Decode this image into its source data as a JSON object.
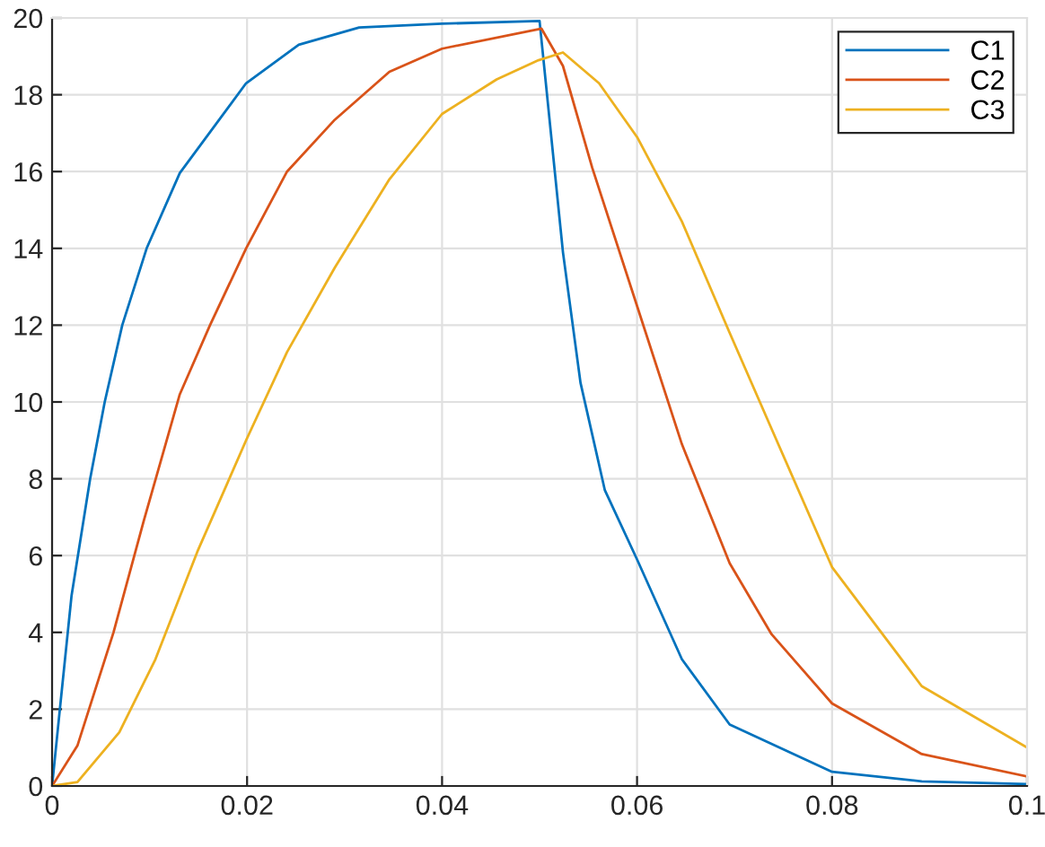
{
  "chart_data": {
    "type": "line",
    "xlim": [
      0,
      0.1
    ],
    "ylim": [
      0,
      20
    ],
    "xticks": [
      0,
      0.02,
      0.04,
      0.06,
      0.08,
      0.1
    ],
    "yticks": [
      0,
      2,
      4,
      6,
      8,
      10,
      12,
      14,
      16,
      18,
      20
    ],
    "grid": true,
    "legend": "top right",
    "marker": "none",
    "line_style": "solid",
    "series": [
      {
        "name": "C1",
        "color": "#0072bd",
        "x": [
          0,
          0.0008,
          0.002,
          0.0039,
          0.0054,
          0.0072,
          0.0097,
          0.0131,
          0.0199,
          0.0253,
          0.0315,
          0.04,
          0.05,
          0.0524,
          0.0542,
          0.0567,
          0.06,
          0.0646,
          0.0695,
          0.08,
          0.0892,
          0.1
        ],
        "values": [
          0,
          2,
          4.96,
          7.99,
          10,
          12,
          14,
          15.96,
          18.3,
          19.3,
          19.75,
          19.85,
          19.92,
          13.9,
          10.5,
          7.7,
          5.9,
          3.3,
          1.6,
          0.37,
          0.12,
          0.05
        ]
      },
      {
        "name": "C2",
        "color": "#d95319",
        "x": [
          0,
          0.0026,
          0.0063,
          0.0094,
          0.0131,
          0.0162,
          0.0199,
          0.0241,
          0.029,
          0.0346,
          0.04,
          0.0502,
          0.0524,
          0.0554,
          0.06,
          0.0646,
          0.0695,
          0.0738,
          0.08,
          0.0892,
          0.1
        ],
        "values": [
          0,
          1.05,
          4,
          6.9,
          10.2,
          12,
          14,
          16,
          17.35,
          18.6,
          19.2,
          19.72,
          18.75,
          16.1,
          12.5,
          8.9,
          5.8,
          3.95,
          2.15,
          0.83,
          0.25
        ]
      },
      {
        "name": "C3",
        "color": "#edb120",
        "x": [
          0,
          0.0026,
          0.0069,
          0.0106,
          0.0149,
          0.0199,
          0.0241,
          0.029,
          0.0346,
          0.04,
          0.0456,
          0.0499,
          0.0524,
          0.0561,
          0.06,
          0.0646,
          0.0695,
          0.0738,
          0.08,
          0.0892,
          0.1
        ],
        "values": [
          0,
          0.1,
          1.4,
          3.3,
          6.1,
          9,
          11.3,
          13.5,
          15.8,
          17.5,
          18.4,
          18.9,
          19.1,
          18.3,
          16.9,
          14.7,
          11.8,
          9.3,
          5.7,
          2.6,
          1
        ]
      }
    ]
  }
}
